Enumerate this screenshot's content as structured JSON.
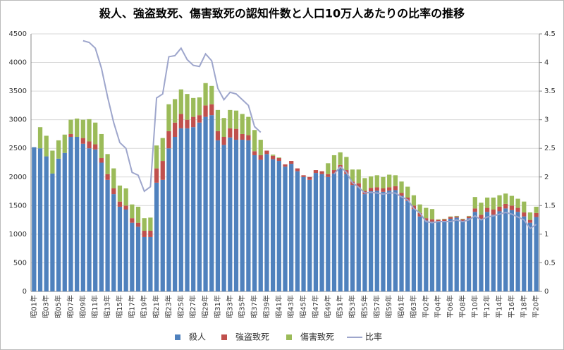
{
  "chart_data": {
    "type": "bar",
    "stacked": true,
    "title": "殺人、強盗致死、傷害致死の認知件数と人口10万人あたりの比率の推移",
    "categories": [
      "昭01年",
      null,
      "昭03年",
      null,
      "昭05年",
      null,
      "昭07年",
      null,
      "昭09年",
      null,
      "昭11年",
      null,
      "昭13年",
      null,
      "昭15年",
      null,
      "昭17年",
      null,
      "昭19年",
      null,
      "昭21年",
      null,
      "昭23年",
      null,
      "昭25年",
      null,
      "昭27年",
      null,
      "昭29年",
      null,
      "昭31年",
      null,
      "昭33年",
      null,
      "昭35年",
      null,
      "昭37年",
      null,
      "昭39年",
      null,
      "昭41年",
      null,
      "昭43年",
      null,
      "昭45年",
      null,
      "昭47年",
      null,
      "昭49年",
      null,
      "昭51年",
      null,
      "昭53年",
      null,
      "昭55年",
      null,
      "昭57年",
      null,
      "昭59年",
      null,
      "昭61年",
      null,
      "昭63年",
      null,
      "平02年",
      null,
      "平04年",
      null,
      "平06年",
      null,
      "平08年",
      null,
      "平10年",
      null,
      "平12年",
      null,
      "平14年",
      null,
      "平16年",
      null,
      "平18年",
      null,
      "平20年"
    ],
    "series": [
      {
        "name": "殺人",
        "color": "#4f81bd",
        "values": [
          2520,
          2500,
          2360,
          2060,
          2320,
          2420,
          2700,
          2700,
          2580,
          2500,
          2480,
          2250,
          1950,
          1700,
          1480,
          1430,
          1200,
          1130,
          950,
          950,
          1900,
          1950,
          2500,
          2700,
          2850,
          2850,
          2870,
          2950,
          3050,
          3080,
          2640,
          2560,
          2690,
          2650,
          2650,
          2640,
          2380,
          2300,
          2400,
          2310,
          2280,
          2180,
          2230,
          2100,
          2000,
          1950,
          2070,
          2050,
          2000,
          2060,
          2140,
          2050,
          1860,
          1820,
          1700,
          1750,
          1760,
          1740,
          1760,
          1770,
          1670,
          1580,
          1440,
          1310,
          1240,
          1220,
          1210,
          1230,
          1270,
          1290,
          1230,
          1280,
          1390,
          1260,
          1390,
          1340,
          1400,
          1450,
          1420,
          1390,
          1310,
          1200,
          1300
        ]
      },
      {
        "name": "強盗致死",
        "color": "#c0504d",
        "values": [
          0,
          0,
          0,
          0,
          0,
          0,
          50,
          0,
          100,
          120,
          90,
          80,
          100,
          100,
          90,
          70,
          80,
          70,
          110,
          110,
          250,
          330,
          300,
          250,
          250,
          150,
          180,
          130,
          200,
          190,
          160,
          140,
          160,
          190,
          100,
          90,
          70,
          80,
          60,
          60,
          50,
          40,
          50,
          50,
          30,
          50,
          50,
          50,
          50,
          60,
          70,
          70,
          60,
          70,
          60,
          60,
          60,
          60,
          60,
          70,
          50,
          60,
          60,
          60,
          40,
          40,
          40,
          30,
          30,
          20,
          30,
          30,
          60,
          80,
          70,
          90,
          80,
          80,
          80,
          70,
          70,
          50,
          70
        ]
      },
      {
        "name": "傷害致死",
        "color": "#9bbb59",
        "values": [
          0,
          370,
          360,
          400,
          320,
          320,
          250,
          320,
          320,
          390,
          380,
          420,
          350,
          350,
          280,
          300,
          240,
          280,
          220,
          230,
          400,
          400,
          470,
          410,
          430,
          450,
          330,
          310,
          390,
          320,
          370,
          330,
          320,
          320,
          350,
          320,
          370,
          270,
          0,
          20,
          10,
          0,
          0,
          0,
          0,
          0,
          0,
          0,
          190,
          260,
          220,
          230,
          210,
          240,
          220,
          200,
          210,
          200,
          220,
          190,
          200,
          190,
          180,
          150,
          180,
          180,
          10,
          10,
          10,
          10,
          10,
          10,
          200,
          210,
          180,
          210,
          200,
          180,
          170,
          160,
          190,
          130,
          110
        ]
      },
      {
        "name": "比率",
        "color": "#9ea6cc",
        "type": "line",
        "axis": "y2",
        "values": [
          null,
          null,
          null,
          null,
          null,
          null,
          null,
          null,
          4.38,
          4.35,
          4.25,
          3.9,
          3.4,
          2.95,
          2.6,
          2.5,
          2.08,
          2.03,
          1.75,
          1.83,
          3.38,
          3.45,
          4.1,
          4.12,
          4.25,
          4.05,
          3.95,
          3.93,
          4.15,
          4.03,
          3.55,
          3.35,
          3.48,
          3.45,
          3.35,
          3.25,
          2.88,
          2.78,
          null,
          null,
          null,
          null,
          null,
          null,
          null,
          null,
          null,
          null,
          null,
          2.05,
          2.18,
          2.08,
          1.9,
          1.82,
          1.72,
          1.73,
          1.72,
          1.7,
          1.72,
          1.72,
          1.65,
          1.6,
          1.45,
          1.37,
          1.22,
          1.2,
          1.22,
          1.22,
          1.22,
          1.25,
          1.22,
          1.25,
          1.32,
          1.25,
          1.3,
          1.32,
          1.35,
          1.38,
          1.35,
          1.3,
          1.25,
          1.1,
          1.17
        ]
      }
    ],
    "ylim": [
      0,
      4500
    ],
    "yticks": [
      0,
      500,
      1000,
      1500,
      2000,
      2500,
      3000,
      3500,
      4000,
      4500
    ],
    "y2lim": [
      0,
      4.5
    ],
    "y2ticks": [
      0,
      0.5,
      1,
      1.5,
      2,
      2.5,
      3,
      3.5,
      4,
      4.5
    ],
    "grid": true,
    "legend": "bottom"
  }
}
